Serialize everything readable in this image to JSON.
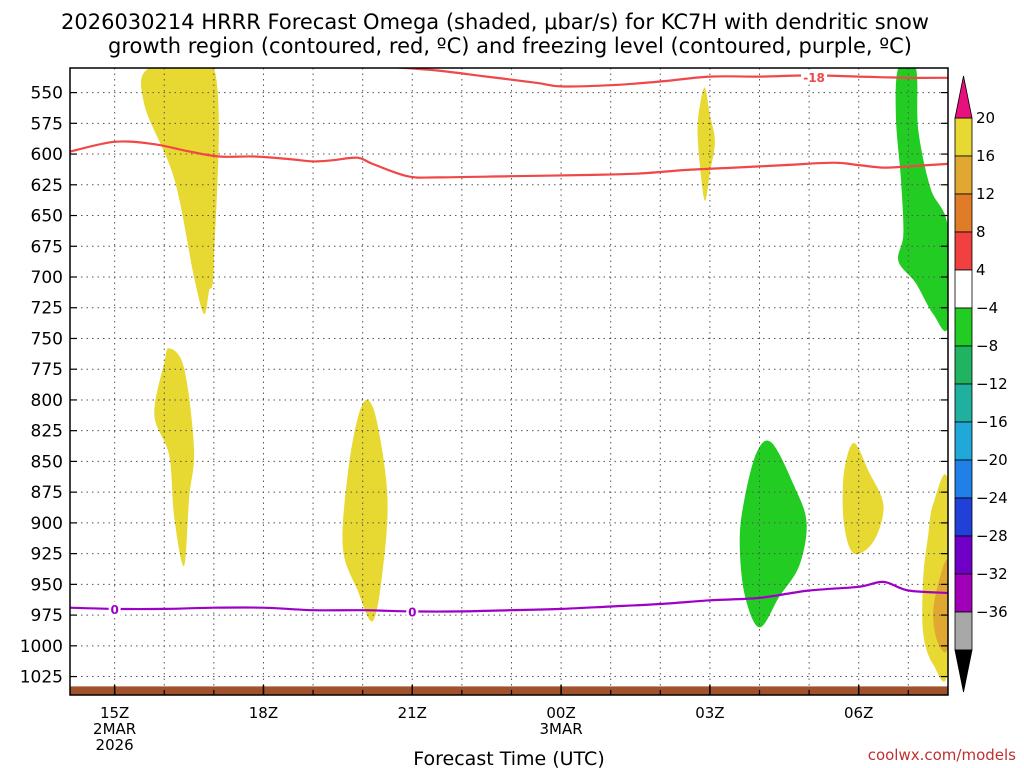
{
  "chart_data": {
    "type": "area",
    "title_lines": [
      "2026030214 HRRR Forecast Omega (shaded, μbar/s) for KC7H with dendritic snow",
      "growth region (contoured, red, ºC) and freezing level (contoured, purple, ºC)"
    ],
    "xlabel": "Forecast Time (UTC)",
    "credit": "coolwx.com/models",
    "x_range_hours": [
      14.1,
      31.8
    ],
    "x_ticks": [
      {
        "hour": 15,
        "lines": [
          "15Z",
          "2MAR",
          "2026"
        ]
      },
      {
        "hour": 18,
        "lines": [
          "18Z"
        ]
      },
      {
        "hour": 21,
        "lines": [
          "21Z"
        ]
      },
      {
        "hour": 24,
        "lines": [
          "00Z",
          "3MAR"
        ]
      },
      {
        "hour": 27,
        "lines": [
          "03Z"
        ]
      },
      {
        "hour": 30,
        "lines": [
          "06Z"
        ]
      }
    ],
    "y_range_mb": [
      1040,
      530
    ],
    "y_ticks": [
      550,
      575,
      600,
      625,
      650,
      675,
      700,
      725,
      750,
      775,
      800,
      825,
      850,
      875,
      900,
      925,
      950,
      975,
      1000,
      1025
    ],
    "grid": true,
    "colorbar": {
      "labels": [
        "20",
        "16",
        "12",
        "8",
        "4",
        "−4",
        "−8",
        "−12",
        "−16",
        "−20",
        "−24",
        "−28",
        "−32",
        "−36"
      ],
      "bins": [
        "#e8d832",
        "#e0a830",
        "#e07c28",
        "#f04040",
        "#ffffff",
        "#22cc22",
        "#20b460",
        "#20b0a0",
        "#20a8d8",
        "#2080e8",
        "#2040d8",
        "#7000c8",
        "#a000b8",
        "#a8a8a8"
      ],
      "top_arrow_color": "#e8107c",
      "bottom_arrow_color": "#000000"
    },
    "omega_regions": [
      {
        "color": "#e8d832",
        "points": [
          [
            15.7,
            530
          ],
          [
            17.0,
            530
          ],
          [
            17.0,
            688
          ],
          [
            16.9,
            712
          ],
          [
            16.8,
            730
          ],
          [
            16.6,
            700
          ],
          [
            16.2,
            620
          ],
          [
            15.6,
            560
          ]
        ]
      },
      {
        "color": "#e8d832",
        "points": [
          [
            26.9,
            546
          ],
          [
            27.0,
            568
          ],
          [
            27.1,
            590
          ],
          [
            27.0,
            615
          ],
          [
            26.9,
            638
          ],
          [
            26.8,
            610
          ],
          [
            26.75,
            580
          ],
          [
            26.8,
            560
          ]
        ]
      },
      {
        "color": "#e8d832",
        "points": [
          [
            16.1,
            758
          ],
          [
            16.4,
            774
          ],
          [
            16.6,
            840
          ],
          [
            16.5,
            880
          ],
          [
            16.4,
            935
          ],
          [
            16.2,
            895
          ],
          [
            16.1,
            845
          ],
          [
            15.8,
            812
          ],
          [
            16.0,
            770
          ]
        ]
      },
      {
        "color": "#e8d832",
        "points": [
          [
            20.1,
            800
          ],
          [
            20.3,
            820
          ],
          [
            20.5,
            880
          ],
          [
            20.4,
            940
          ],
          [
            20.2,
            980
          ],
          [
            19.9,
            955
          ],
          [
            19.6,
            920
          ],
          [
            19.7,
            860
          ],
          [
            19.9,
            815
          ]
        ]
      },
      {
        "color": "#e8d832",
        "points": [
          [
            29.9,
            835
          ],
          [
            30.2,
            858
          ],
          [
            30.5,
            886
          ],
          [
            30.3,
            915
          ],
          [
            29.9,
            925
          ],
          [
            29.7,
            900
          ],
          [
            29.7,
            860
          ]
        ]
      },
      {
        "color": "#e8d832",
        "points": [
          [
            31.8,
            868
          ],
          [
            31.5,
            885
          ],
          [
            31.4,
            910
          ],
          [
            31.3,
            945
          ],
          [
            31.3,
            990
          ],
          [
            31.5,
            1015
          ],
          [
            31.8,
            1018
          ]
        ]
      },
      {
        "color": "#e0a830",
        "points": [
          [
            31.8,
            932
          ],
          [
            31.6,
            950
          ],
          [
            31.5,
            975
          ],
          [
            31.6,
            998
          ],
          [
            31.8,
            1000
          ]
        ]
      },
      {
        "color": "#22cc22",
        "points": [
          [
            28.25,
            835
          ],
          [
            28.7,
            870
          ],
          [
            28.95,
            900
          ],
          [
            28.8,
            935
          ],
          [
            28.4,
            960
          ],
          [
            28.0,
            985
          ],
          [
            27.7,
            958
          ],
          [
            27.6,
            915
          ],
          [
            27.7,
            880
          ],
          [
            27.95,
            842
          ]
        ]
      },
      {
        "color": "#22cc22",
        "points": [
          [
            30.8,
            530
          ],
          [
            31.15,
            530
          ],
          [
            31.2,
            580
          ],
          [
            31.45,
            628
          ],
          [
            31.8,
            660
          ],
          [
            31.8,
            740
          ],
          [
            31.5,
            730
          ],
          [
            31.15,
            705
          ],
          [
            30.8,
            687
          ],
          [
            30.9,
            665
          ],
          [
            30.85,
            620
          ],
          [
            30.75,
            570
          ]
        ]
      }
    ],
    "dgz_contours": [
      {
        "color": "#f04848",
        "label": "-18",
        "label_at": [
          29.1,
          538
        ],
        "points": [
          [
            20.5,
            529
          ],
          [
            21.5,
            532
          ],
          [
            22.5,
            537
          ],
          [
            23.5,
            542
          ],
          [
            24.0,
            545
          ],
          [
            25.0,
            544
          ],
          [
            26.0,
            541
          ],
          [
            27.0,
            537
          ],
          [
            28.0,
            537
          ],
          [
            29.0,
            536
          ],
          [
            30.0,
            537
          ],
          [
            31.0,
            538
          ],
          [
            31.8,
            538
          ]
        ]
      },
      {
        "color": "#f04848",
        "points": [
          [
            14.1,
            598
          ],
          [
            15.0,
            590
          ],
          [
            15.8,
            592
          ],
          [
            16.4,
            597
          ],
          [
            17.1,
            602
          ],
          [
            17.8,
            602
          ],
          [
            18.5,
            604
          ],
          [
            19.0,
            606
          ],
          [
            19.4,
            605
          ],
          [
            19.9,
            603
          ],
          [
            20.2,
            608
          ],
          [
            20.9,
            618
          ],
          [
            21.5,
            619
          ],
          [
            23.0,
            618
          ],
          [
            24.5,
            617
          ],
          [
            25.5,
            616
          ],
          [
            26.5,
            613
          ],
          [
            27.5,
            611
          ],
          [
            28.5,
            609
          ],
          [
            29.5,
            607
          ],
          [
            30.0,
            609
          ],
          [
            30.5,
            611
          ],
          [
            31.0,
            610
          ],
          [
            31.8,
            608
          ]
        ]
      }
    ],
    "freezing_level": {
      "color": "#9e00c8",
      "label": "0",
      "label_at_hours": [
        15.0,
        21.0
      ],
      "points": [
        [
          14.1,
          969
        ],
        [
          15.0,
          970
        ],
        [
          16.0,
          970
        ],
        [
          17.0,
          969
        ],
        [
          18.0,
          969
        ],
        [
          19.0,
          971
        ],
        [
          20.0,
          971
        ],
        [
          21.0,
          972
        ],
        [
          22.0,
          972
        ],
        [
          23.0,
          971
        ],
        [
          24.0,
          970
        ],
        [
          25.0,
          968
        ],
        [
          26.0,
          966
        ],
        [
          27.0,
          963
        ],
        [
          28.0,
          961
        ],
        [
          29.0,
          955
        ],
        [
          30.0,
          952
        ],
        [
          30.5,
          948
        ],
        [
          31.0,
          955
        ],
        [
          31.8,
          957
        ]
      ]
    },
    "terrain": {
      "color": "#a0522d",
      "top_mb": 1033,
      "bottom_mb": 1040
    }
  }
}
